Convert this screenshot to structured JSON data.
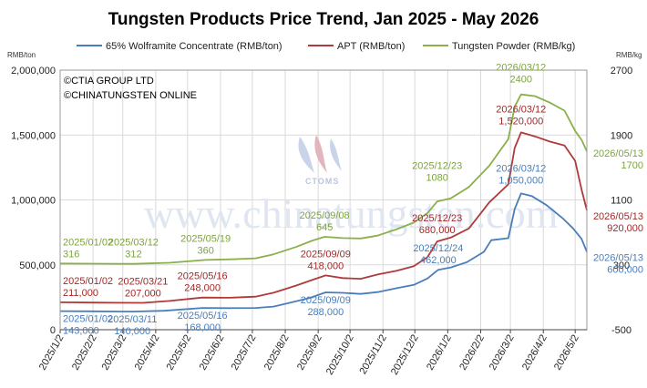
{
  "chart_data": {
    "type": "line",
    "title": "Tungsten Products Price Trend, Jan 2025 - May 2026",
    "left_unit": "RMB/ton",
    "right_unit": "RMB/kg",
    "y_left": {
      "min": 0,
      "max": 2000000,
      "ticks": [
        "0",
        "500,000",
        "1,000,000",
        "1,500,000",
        "2,000,000"
      ],
      "tick_values": [
        0,
        500000,
        1000000,
        1500000,
        2000000
      ]
    },
    "y_right": {
      "min": -500,
      "max": 2700,
      "ticks": [
        "-500",
        "300",
        "1100",
        "1900",
        "2700"
      ],
      "tick_values": [
        -500,
        300,
        1100,
        1900,
        2700
      ]
    },
    "x_ticks": [
      "2025/1/2",
      "2025/2/2",
      "2025/3/2",
      "2025/4/2",
      "2025/5/2",
      "2025/6/2",
      "2025/7/2",
      "2025/8/2",
      "2025/9/2",
      "2025/10/2",
      "2025/11/2",
      "2025/12/2",
      "2026/1/2",
      "2026/2/2",
      "2026/3/2",
      "2026/4/2",
      "2026/5/2"
    ],
    "x_range": [
      "2025/1/2",
      "2026/5/13"
    ],
    "grid": true,
    "legend": "top",
    "credits": [
      "©CTIA GROUP LTD",
      "©CHINATUNGSTEN ONLINE"
    ],
    "watermark": "www.chinatungsten.com",
    "logo_text": "CTOMS",
    "series": [
      {
        "name": "65% Wolframite Concentrate (RMB/ton)",
        "color": "#4a7ebb",
        "axis": "left",
        "points": [
          [
            "2025/1/2",
            143000
          ],
          [
            "2025/2/1",
            141500
          ],
          [
            "2025/3/11",
            140000
          ],
          [
            "2025/4/10",
            146000
          ],
          [
            "2025/5/16",
            168000
          ],
          [
            "2025/6/10",
            166000
          ],
          [
            "2025/7/5",
            168000
          ],
          [
            "2025/7/22",
            178000
          ],
          [
            "2025/8/10",
            215000
          ],
          [
            "2025/8/25",
            245000
          ],
          [
            "2025/9/9",
            288000
          ],
          [
            "2025/9/25",
            284000
          ],
          [
            "2025/10/12",
            276000
          ],
          [
            "2025/10/28",
            290000
          ],
          [
            "2025/11/15",
            320000
          ],
          [
            "2025/12/1",
            345000
          ],
          [
            "2025/12/14",
            395000
          ],
          [
            "2025/12/24",
            462000
          ],
          [
            "2026/1/5",
            480000
          ],
          [
            "2026/1/20",
            520000
          ],
          [
            "2026/2/5",
            600000
          ],
          [
            "2026/2/12",
            690000
          ],
          [
            "2026/2/28",
            705000
          ],
          [
            "2026/3/6",
            930000
          ],
          [
            "2026/3/12",
            1050000
          ],
          [
            "2026/3/22",
            1030000
          ],
          [
            "2026/4/5",
            960000
          ],
          [
            "2026/4/20",
            860000
          ],
          [
            "2026/4/30",
            780000
          ],
          [
            "2026/5/8",
            700000
          ],
          [
            "2026/5/13",
            600000
          ]
        ]
      },
      {
        "name": "APT (RMB/ton)",
        "color": "#b03a3a",
        "axis": "left",
        "points": [
          [
            "2025/1/2",
            211000
          ],
          [
            "2025/2/1",
            209000
          ],
          [
            "2025/3/21",
            207000
          ],
          [
            "2025/4/15",
            222000
          ],
          [
            "2025/5/16",
            248000
          ],
          [
            "2025/6/10",
            246000
          ],
          [
            "2025/7/5",
            255000
          ],
          [
            "2025/7/22",
            285000
          ],
          [
            "2025/8/12",
            340000
          ],
          [
            "2025/8/28",
            385000
          ],
          [
            "2025/9/9",
            418000
          ],
          [
            "2025/9/25",
            398000
          ],
          [
            "2025/10/12",
            392000
          ],
          [
            "2025/10/28",
            425000
          ],
          [
            "2025/11/15",
            455000
          ],
          [
            "2025/12/1",
            490000
          ],
          [
            "2025/12/14",
            560000
          ],
          [
            "2025/12/23",
            680000
          ],
          [
            "2026/1/5",
            710000
          ],
          [
            "2026/1/22",
            780000
          ],
          [
            "2026/2/10",
            980000
          ],
          [
            "2026/2/28",
            1120000
          ],
          [
            "2026/3/6",
            1400000
          ],
          [
            "2026/3/12",
            1520000
          ],
          [
            "2026/3/25",
            1490000
          ],
          [
            "2026/4/8",
            1450000
          ],
          [
            "2026/4/22",
            1420000
          ],
          [
            "2026/5/2",
            1300000
          ],
          [
            "2026/5/8",
            1080000
          ],
          [
            "2026/5/13",
            920000
          ]
        ]
      },
      {
        "name": "Tungsten Powder (RMB/kg)",
        "color": "#8ab04a",
        "axis": "right",
        "points": [
          [
            "2025/1/2",
            316
          ],
          [
            "2025/2/1",
            314
          ],
          [
            "2025/3/12",
            312
          ],
          [
            "2025/4/15",
            325
          ],
          [
            "2025/5/19",
            360
          ],
          [
            "2025/6/12",
            368
          ],
          [
            "2025/7/5",
            380
          ],
          [
            "2025/7/22",
            430
          ],
          [
            "2025/8/12",
            520
          ],
          [
            "2025/8/28",
            600
          ],
          [
            "2025/9/8",
            645
          ],
          [
            "2025/9/25",
            630
          ],
          [
            "2025/10/12",
            625
          ],
          [
            "2025/10/28",
            660
          ],
          [
            "2025/11/15",
            740
          ],
          [
            "2025/12/1",
            820
          ],
          [
            "2025/12/14",
            940
          ],
          [
            "2025/12/23",
            1080
          ],
          [
            "2026/1/5",
            1120
          ],
          [
            "2026/1/22",
            1260
          ],
          [
            "2026/2/10",
            1520
          ],
          [
            "2026/2/28",
            1850
          ],
          [
            "2026/3/6",
            2250
          ],
          [
            "2026/3/12",
            2400
          ],
          [
            "2026/3/25",
            2380
          ],
          [
            "2026/4/8",
            2300
          ],
          [
            "2026/4/22",
            2200
          ],
          [
            "2026/5/2",
            1950
          ],
          [
            "2026/5/8",
            1840
          ],
          [
            "2026/5/13",
            1700
          ]
        ]
      }
    ],
    "annotations": [
      {
        "series": 2,
        "date": "2025/1/2",
        "value": 316,
        "lines": [
          "2025/01/02",
          "316"
        ]
      },
      {
        "series": 2,
        "date": "2025/3/12",
        "value": 312,
        "lines": [
          "2025/03/12",
          "312"
        ]
      },
      {
        "series": 2,
        "date": "2025/5/19",
        "value": 360,
        "lines": [
          "2025/05/19",
          "360"
        ]
      },
      {
        "series": 2,
        "date": "2025/9/8",
        "value": 645,
        "lines": [
          "2025/09/08",
          "645"
        ]
      },
      {
        "series": 2,
        "date": "2025/12/23",
        "value": 1080,
        "lines": [
          "2025/12/23",
          "1080"
        ]
      },
      {
        "series": 2,
        "date": "2026/3/12",
        "value": 2400,
        "lines": [
          "2026/03/12",
          "2400"
        ]
      },
      {
        "series": 2,
        "date": "2026/5/13",
        "value": 1700,
        "lines": [
          "2026/05/13",
          "1700"
        ]
      },
      {
        "series": 1,
        "date": "2025/1/2",
        "value": 211000,
        "lines": [
          "2025/01/02",
          "211,000"
        ]
      },
      {
        "series": 1,
        "date": "2025/3/21",
        "value": 207000,
        "lines": [
          "2025/03/21",
          "207,000"
        ]
      },
      {
        "series": 1,
        "date": "2025/5/16",
        "value": 248000,
        "lines": [
          "2025/05/16",
          "248,000"
        ]
      },
      {
        "series": 1,
        "date": "2025/9/9",
        "value": 418000,
        "lines": [
          "2025/09/09",
          "418,000"
        ]
      },
      {
        "series": 1,
        "date": "2025/12/23",
        "value": 680000,
        "lines": [
          "2025/12/23",
          "680,000"
        ]
      },
      {
        "series": 1,
        "date": "2026/3/12",
        "value": 1520000,
        "lines": [
          "2026/03/12",
          "1,520,000"
        ]
      },
      {
        "series": 1,
        "date": "2026/5/13",
        "value": 920000,
        "lines": [
          "2026/05/13",
          "920,000"
        ]
      },
      {
        "series": 0,
        "date": "2025/1/2",
        "value": 143000,
        "lines": [
          "2025/01/02",
          "143,000"
        ]
      },
      {
        "series": 0,
        "date": "2025/3/11",
        "value": 140000,
        "lines": [
          "2025/03/11",
          "140,000"
        ]
      },
      {
        "series": 0,
        "date": "2025/5/16",
        "value": 168000,
        "lines": [
          "2025/05/16",
          "168,000"
        ]
      },
      {
        "series": 0,
        "date": "2025/9/9",
        "value": 288000,
        "lines": [
          "2025/09/09",
          "288,000"
        ]
      },
      {
        "series": 0,
        "date": "2025/12/24",
        "value": 462000,
        "lines": [
          "2025/12/24",
          "462,000"
        ]
      },
      {
        "series": 0,
        "date": "2026/3/12",
        "value": 1050000,
        "lines": [
          "2026/03/12",
          "1,050,000"
        ]
      },
      {
        "series": 0,
        "date": "2026/5/13",
        "value": 600000,
        "lines": [
          "2026/05/13",
          "600,000"
        ]
      }
    ]
  }
}
